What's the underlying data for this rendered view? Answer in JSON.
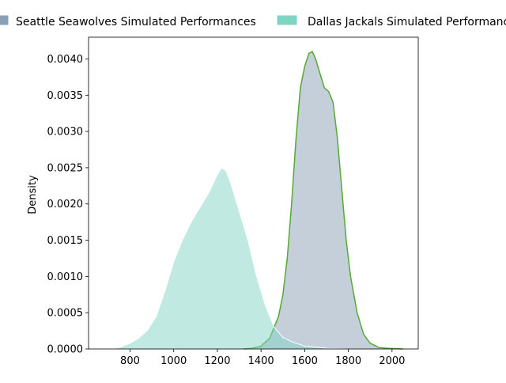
{
  "chart_data": {
    "type": "area",
    "title": "",
    "xlabel": "",
    "ylabel": "Density",
    "xlim": [
      610,
      2120
    ],
    "ylim": [
      0,
      0.0043
    ],
    "x_ticks": [
      800,
      1000,
      1200,
      1400,
      1600,
      1800,
      2000
    ],
    "y_ticks": [
      0.0,
      0.0005,
      0.001,
      0.0015,
      0.002,
      0.0025,
      0.003,
      0.0035,
      0.004
    ],
    "x_tick_labels": [
      "800",
      "1000",
      "1200",
      "1400",
      "1600",
      "1800",
      "2000"
    ],
    "y_tick_labels": [
      "0.0000",
      "0.0005",
      "0.0010",
      "0.0015",
      "0.0020",
      "0.0025",
      "0.0030",
      "0.0035",
      "0.0040"
    ],
    "grid": false,
    "legend_position": "top",
    "series": [
      {
        "name": "Seattle Seawolves Simulated Performances",
        "fill": "#8a9fb6",
        "line": "#55aa33",
        "x": [
          1320,
          1360,
          1400,
          1440,
          1480,
          1500,
          1520,
          1540,
          1560,
          1580,
          1600,
          1620,
          1635,
          1650,
          1670,
          1690,
          1710,
          1730,
          1750,
          1770,
          1790,
          1810,
          1840,
          1870,
          1900,
          1940,
          1980,
          2050
        ],
        "y": [
          0.0,
          1e-05,
          4e-05,
          0.00015,
          0.00045,
          0.00075,
          0.00125,
          0.002,
          0.0029,
          0.0036,
          0.0039,
          0.00408,
          0.0041,
          0.004,
          0.0038,
          0.0036,
          0.00355,
          0.0034,
          0.0029,
          0.0022,
          0.0015,
          0.001,
          0.0005,
          0.0002,
          8e-05,
          2e-05,
          1e-05,
          0.0
        ]
      },
      {
        "name": "Dallas Jackals Simulated Performances",
        "fill": "#7fd4c4",
        "line": "#ffffff",
        "x": [
          720,
          760,
          800,
          840,
          880,
          920,
          960,
          1000,
          1040,
          1080,
          1120,
          1160,
          1200,
          1220,
          1240,
          1260,
          1280,
          1300,
          1340,
          1380,
          1420,
          1460,
          1500,
          1540,
          1600,
          1700,
          1800,
          1880
        ],
        "y": [
          0.0,
          3e-05,
          8e-05,
          0.00015,
          0.00026,
          0.00045,
          0.0008,
          0.0012,
          0.0015,
          0.00175,
          0.00195,
          0.00215,
          0.0024,
          0.0025,
          0.00245,
          0.0023,
          0.0021,
          0.0019,
          0.0015,
          0.001,
          0.0006,
          0.0003,
          0.00016,
          0.0001,
          4e-05,
          1e-05,
          0.0,
          0.0
        ]
      }
    ]
  }
}
